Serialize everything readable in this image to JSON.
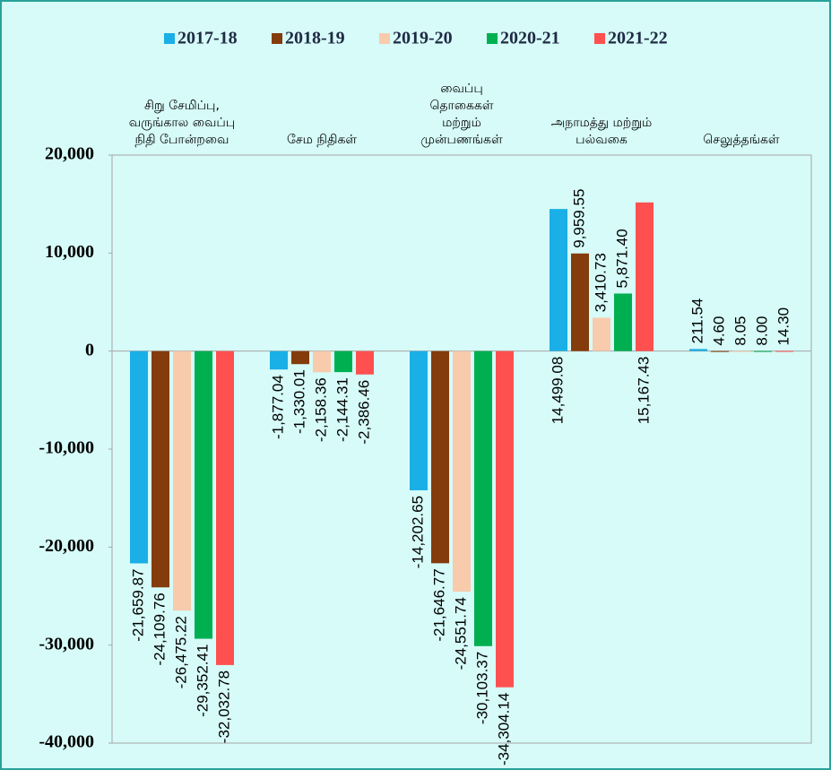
{
  "chart_data": {
    "type": "bar",
    "categories": [
      [
        "சிறு சேமிப்பு,",
        "வருங்கால வைப்பு",
        "நிதி போன்றவை"
      ],
      [
        "சேம நிதிகள்"
      ],
      [
        "வைப்பு",
        "தொகைகள்",
        "மற்றும்",
        "முன்பணங்கள்"
      ],
      [
        "அநாமத்து மற்றும்",
        "பல்வகை"
      ],
      [
        "செலுத்தங்கள்"
      ]
    ],
    "series": [
      {
        "name": "2017-18",
        "color": "#1aafe6",
        "values": [
          -21659.87,
          -1877.04,
          -14202.65,
          14499.08,
          211.54
        ],
        "value_labels": [
          "-21,659.87",
          "-1,877.04",
          "-14,202.65",
          "14,499.08",
          "211.54"
        ]
      },
      {
        "name": "2018-19",
        "color": "#843c0c",
        "values": [
          -24109.76,
          -1330.01,
          -21646.77,
          9959.55,
          4.6
        ],
        "value_labels": [
          "-24,109.76",
          "-1,330.01",
          "-21,646.77",
          "9,959.55",
          "4.60"
        ]
      },
      {
        "name": "2019-20",
        "color": "#f8cbad",
        "values": [
          -26475.22,
          -2158.36,
          -24551.74,
          3410.73,
          8.05
        ],
        "value_labels": [
          "-26,475.22",
          "-2,158.36",
          "-24,551.74",
          "3,410.73",
          "8.05"
        ]
      },
      {
        "name": "2020-21",
        "color": "#00b050",
        "values": [
          -29352.41,
          -2144.31,
          -30103.37,
          5871.4,
          8.0
        ],
        "value_labels": [
          "-29,352.41",
          "-2,144.31",
          "-30,103.37",
          "5,871.40",
          "8.00"
        ]
      },
      {
        "name": "2021-22",
        "color": "#ff5050",
        "values": [
          -32032.78,
          -2386.46,
          -34304.14,
          15167.43,
          14.3
        ],
        "value_labels": [
          "-32,032.78",
          "-2,386.46",
          "-34,304.14",
          "15,167.43",
          "14.30"
        ]
      }
    ],
    "ylim": [
      -40000,
      20000
    ],
    "yticks": [
      {
        "value": 20000,
        "label": "20,000"
      },
      {
        "value": 10000,
        "label": "10,000"
      },
      0,
      {
        "value": -10000,
        "label": "-10,000"
      },
      {
        "value": -20000,
        "label": "-20,000"
      },
      {
        "value": -30000,
        "label": "-30,000"
      },
      {
        "value": -40000,
        "label": "-40,000"
      }
    ]
  }
}
